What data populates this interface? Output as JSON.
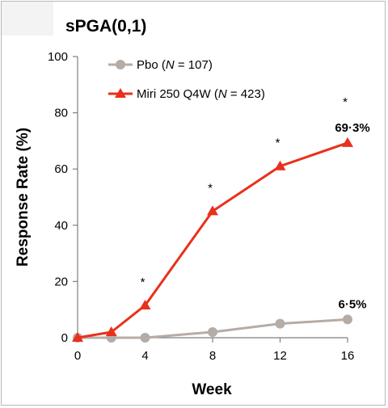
{
  "chart_data": {
    "type": "line",
    "title": "sPGA(0,1)",
    "xlabel": "Week",
    "ylabel": "Response Rate (%)",
    "xlim": [
      0,
      16
    ],
    "ylim": [
      0,
      100
    ],
    "xticks": [
      0,
      4,
      8,
      12,
      16
    ],
    "yticks": [
      0,
      20,
      40,
      60,
      80,
      100
    ],
    "grid": false,
    "legend_position": "top-left",
    "series": [
      {
        "name": "Pbo (N = 107)",
        "legend_prefix": "Pbo (",
        "legend_italic": "N",
        "legend_suffix": " = 107)",
        "color": "#b5aca6",
        "marker": "circle",
        "x": [
          0,
          2,
          4,
          8,
          12,
          16
        ],
        "values": [
          0,
          0,
          0,
          2,
          5,
          6.5
        ],
        "end_label": "6·5%"
      },
      {
        "name": "Miri 250 Q4W (N = 423)",
        "legend_prefix": "Miri 250 Q4W (",
        "legend_italic": "N",
        "legend_suffix": " = 423)",
        "color": "#e8301c",
        "marker": "triangle",
        "x": [
          0,
          2,
          4,
          8,
          12,
          16
        ],
        "values": [
          0,
          2,
          11.5,
          45,
          61,
          69.3
        ],
        "end_label": "69·3%"
      }
    ],
    "significance_marker": "*",
    "significance_weeks": [
      4,
      8,
      12,
      16
    ]
  }
}
